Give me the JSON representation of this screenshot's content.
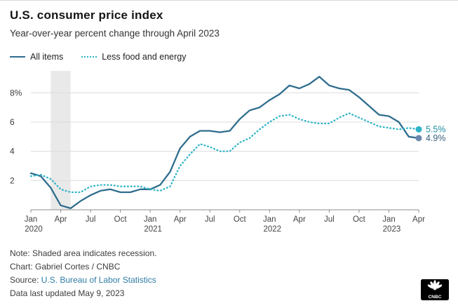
{
  "header": {
    "title": "U.S. consumer price index",
    "subtitle": "Year-over-year percent change through April 2023"
  },
  "legend": {
    "all_items": "All items",
    "core": "Less food and energy"
  },
  "chart_data": {
    "type": "line",
    "title": "U.S. consumer price index",
    "subtitle": "Year-over-year percent change through April 2023",
    "xlabel": "",
    "ylabel": "",
    "ylim": [
      0,
      9.5
    ],
    "grid": true,
    "legend_position": "top",
    "x": [
      "Jan 2020",
      "Feb 2020",
      "Mar 2020",
      "Apr 2020",
      "May 2020",
      "Jun 2020",
      "Jul 2020",
      "Aug 2020",
      "Sep 2020",
      "Oct 2020",
      "Nov 2020",
      "Dec 2020",
      "Jan 2021",
      "Feb 2021",
      "Mar 2021",
      "Apr 2021",
      "May 2021",
      "Jun 2021",
      "Jul 2021",
      "Aug 2021",
      "Sep 2021",
      "Oct 2021",
      "Nov 2021",
      "Dec 2021",
      "Jan 2022",
      "Feb 2022",
      "Mar 2022",
      "Apr 2022",
      "May 2022",
      "Jun 2022",
      "Jul 2022",
      "Aug 2022",
      "Sep 2022",
      "Oct 2022",
      "Nov 2022",
      "Dec 2022",
      "Jan 2023",
      "Feb 2023",
      "Mar 2023",
      "Apr 2023"
    ],
    "series": [
      {
        "name": "All items",
        "style": "solid",
        "color": "#2f6d8e",
        "values": [
          2.5,
          2.3,
          1.5,
          0.3,
          0.1,
          0.6,
          1.0,
          1.3,
          1.4,
          1.2,
          1.2,
          1.4,
          1.4,
          1.7,
          2.6,
          4.2,
          5.0,
          5.4,
          5.4,
          5.3,
          5.4,
          6.2,
          6.8,
          7.0,
          7.5,
          7.9,
          8.5,
          8.3,
          8.6,
          9.1,
          8.5,
          8.3,
          8.2,
          7.7,
          7.1,
          6.5,
          6.4,
          6.0,
          5.0,
          4.9
        ],
        "end_label": {
          "text": "4.9%",
          "dot_color": "#6c87ad",
          "label_color": "#3a5f7d"
        }
      },
      {
        "name": "Less food and energy",
        "style": "dotted",
        "color": "#2fb3c7",
        "values": [
          2.3,
          2.4,
          2.1,
          1.4,
          1.2,
          1.2,
          1.6,
          1.7,
          1.7,
          1.6,
          1.6,
          1.6,
          1.4,
          1.3,
          1.6,
          3.0,
          3.8,
          4.5,
          4.3,
          4.0,
          4.0,
          4.6,
          4.9,
          5.5,
          6.0,
          6.4,
          6.5,
          6.2,
          6.0,
          5.9,
          5.9,
          6.3,
          6.6,
          6.3,
          6.0,
          5.7,
          5.6,
          5.5,
          5.6,
          5.5
        ],
        "end_label": {
          "text": "5.5%",
          "dot_color": "#2fb3c7",
          "label_color": "#1d8ba0"
        }
      }
    ],
    "yticks": [
      {
        "v": 2,
        "label": "2"
      },
      {
        "v": 4,
        "label": "4"
      },
      {
        "v": 6,
        "label": "6"
      },
      {
        "v": 8,
        "label": "8%"
      }
    ],
    "x_tick_every": 3,
    "recession_span": {
      "from": "Feb 2020",
      "to": "Apr 2020"
    },
    "recession_color": "#e9e9e9"
  },
  "footer": {
    "note": "Note: Shaded area indicates recession.",
    "credit": "Chart: Gabriel Cortes / CNBC",
    "source_label": "Source: ",
    "source_link": "U.S. Bureau of Labor Statistics",
    "updated": "Data last updated May 9, 2023"
  },
  "logo": {
    "name": "CNBC"
  }
}
